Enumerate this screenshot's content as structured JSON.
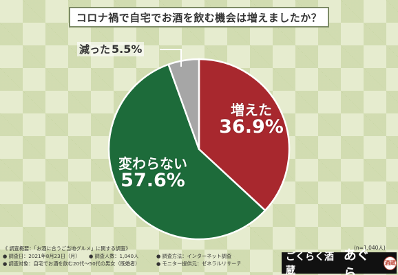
{
  "chart_data": {
    "type": "pie",
    "title": "コロナ禍で自宅でお酒を飲む機会は増えましたか？",
    "labels": [
      "増えた",
      "変わらない",
      "減った"
    ],
    "values": [
      36.9,
      57.6,
      5.5
    ],
    "colors": [
      "#a8282e",
      "#1d6b3a",
      "#a6a6a6"
    ]
  },
  "labels_text": {
    "inc": "36.9%",
    "same": "57.6%",
    "dec": "5.5%"
  },
  "footer": {
    "sample_note": "(n=1,040人)",
    "line1": "《 調査概要：「お酒に合うご当地グルメ」に関する調査》",
    "date": "● 調査日：2021年8月23日（月）",
    "count": "● 調査人数：1,040人",
    "method": "● 調査方法：インターネット調査",
    "target": "● 調査対象：自宅でお酒を飲む20代～50代の男女（既婚者）",
    "provider": "● モニター提供元：ゼネラルリサーチ"
  },
  "brand": {
    "name1": "ごくらく酒蔵",
    "name2": "あぐら",
    "seal": "酒蔵"
  }
}
